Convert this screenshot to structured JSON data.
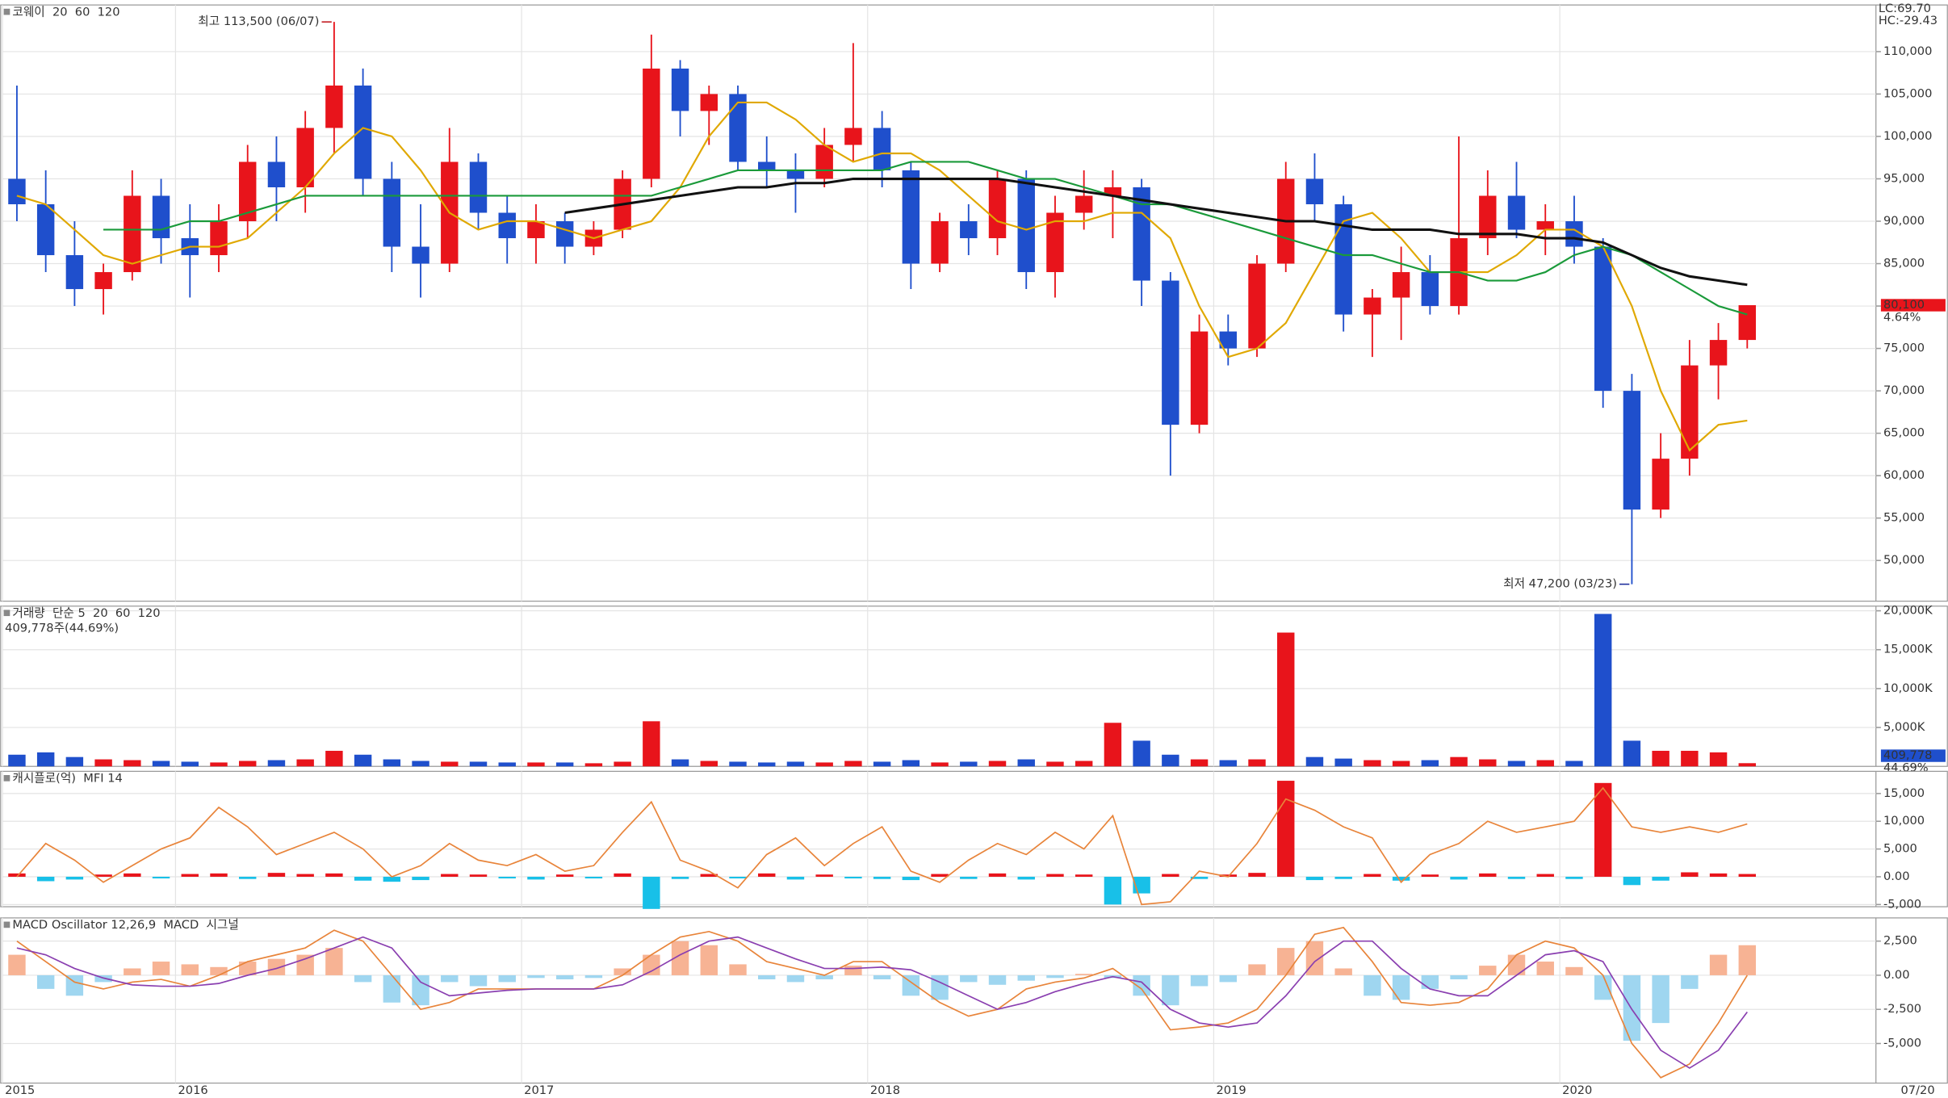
{
  "chart_data": [
    {
      "type": "candlestick",
      "title": "코웨이",
      "categories": [
        "2015",
        null,
        null,
        null,
        null,
        null,
        "2016",
        null,
        null,
        null,
        null,
        null,
        null,
        null,
        null,
        null,
        null,
        null,
        "2017",
        null,
        null,
        null,
        null,
        null,
        null,
        null,
        null,
        null,
        null,
        null,
        "2018",
        null,
        null,
        null,
        null,
        null,
        null,
        null,
        null,
        null,
        null,
        null,
        "2019",
        null,
        null,
        null,
        null,
        null,
        null,
        null,
        null,
        null,
        null,
        null,
        "2020",
        null,
        null,
        null,
        null,
        null,
        null
      ],
      "x_end_label": "07/20",
      "open": [
        95000,
        92000,
        86000,
        82000,
        84000,
        93000,
        88000,
        86000,
        90000,
        97000,
        94000,
        101000,
        106000,
        95000,
        87000,
        85000,
        97000,
        91000,
        88000,
        90000,
        87000,
        89000,
        95000,
        108000,
        103000,
        105000,
        97000,
        96000,
        95000,
        99000,
        101000,
        96000,
        85000,
        90000,
        88000,
        95000,
        84000,
        91000,
        93000,
        94000,
        83000,
        66000,
        77000,
        75000,
        85000,
        95000,
        92000,
        79000,
        81000,
        84000,
        80000,
        88000,
        93000,
        89000,
        90000,
        87000,
        70000,
        56000,
        62000,
        73000,
        76000
      ],
      "high": [
        106000,
        96000,
        90000,
        85000,
        96000,
        95000,
        92000,
        92000,
        99000,
        100000,
        103000,
        113500,
        108000,
        97000,
        92000,
        101000,
        98000,
        93000,
        92000,
        91000,
        90000,
        96000,
        112000,
        109000,
        106000,
        106000,
        100000,
        98000,
        101000,
        111000,
        103000,
        97000,
        91000,
        92000,
        96000,
        96000,
        93000,
        96000,
        96000,
        95000,
        84000,
        79000,
        79000,
        86000,
        97000,
        98000,
        93000,
        82000,
        87000,
        86000,
        100000,
        96000,
        97000,
        92000,
        93000,
        88000,
        72000,
        65000,
        76000,
        78000,
        80100
      ],
      "low": [
        90000,
        84000,
        80000,
        79000,
        83000,
        85000,
        81000,
        84000,
        88000,
        90000,
        91000,
        98000,
        93000,
        84000,
        81000,
        84000,
        89000,
        85000,
        85000,
        85000,
        86000,
        88000,
        94000,
        100000,
        99000,
        96000,
        94000,
        91000,
        94000,
        97000,
        94000,
        82000,
        84000,
        86000,
        86000,
        82000,
        81000,
        89000,
        88000,
        80000,
        60000,
        65000,
        73000,
        74000,
        84000,
        90000,
        77000,
        74000,
        76000,
        79000,
        79000,
        86000,
        88000,
        86000,
        85000,
        68000,
        47200,
        55000,
        60000,
        69000,
        75000
      ],
      "close": [
        92000,
        86000,
        82000,
        84000,
        93000,
        88000,
        86000,
        90000,
        97000,
        94000,
        101000,
        106000,
        95000,
        87000,
        85000,
        97000,
        91000,
        88000,
        90000,
        87000,
        89000,
        95000,
        108000,
        103000,
        105000,
        97000,
        96000,
        95000,
        99000,
        101000,
        96000,
        85000,
        90000,
        88000,
        95000,
        84000,
        91000,
        93000,
        94000,
        83000,
        66000,
        77000,
        75000,
        85000,
        95000,
        92000,
        79000,
        81000,
        84000,
        80000,
        88000,
        93000,
        89000,
        90000,
        87000,
        70000,
        56000,
        62000,
        73000,
        76000,
        80100
      ],
      "up_color": "#e8141b",
      "down_color": "#1f4fcc",
      "series": [
        {
          "name": "20",
          "color": "#e0a800",
          "values": [
            93000,
            92000,
            89000,
            86000,
            85000,
            86000,
            87000,
            87000,
            88000,
            91000,
            94000,
            98000,
            101000,
            100000,
            96000,
            91000,
            89000,
            90000,
            90000,
            89000,
            88000,
            89000,
            90000,
            94000,
            100000,
            104000,
            104000,
            102000,
            99000,
            97000,
            98000,
            98000,
            96000,
            93000,
            90000,
            89000,
            90000,
            90000,
            91000,
            91000,
            88000,
            80000,
            74000,
            75000,
            78000,
            84000,
            90000,
            91000,
            88000,
            84000,
            84000,
            84000,
            86000,
            89000,
            89000,
            87000,
            80000,
            70000,
            63000,
            66000,
            66500
          ]
        },
        {
          "name": "60",
          "color": "#1a9a3a",
          "values": [
            null,
            null,
            null,
            89000,
            89000,
            89000,
            90000,
            90000,
            91000,
            92000,
            93000,
            93000,
            93000,
            93000,
            93000,
            93000,
            93000,
            93000,
            93000,
            93000,
            93000,
            93000,
            93000,
            94000,
            95000,
            96000,
            96000,
            96000,
            96000,
            96000,
            96000,
            97000,
            97000,
            97000,
            96000,
            95000,
            95000,
            94000,
            93000,
            92000,
            92000,
            91000,
            90000,
            89000,
            88000,
            87000,
            86000,
            86000,
            85000,
            84000,
            84000,
            83000,
            83000,
            84000,
            86000,
            87000,
            86000,
            84000,
            82000,
            80000,
            79000
          ]
        },
        {
          "name": "120",
          "color": "#111111",
          "values": [
            null,
            null,
            null,
            null,
            null,
            null,
            null,
            null,
            null,
            null,
            null,
            null,
            null,
            null,
            null,
            null,
            null,
            null,
            null,
            91000,
            91500,
            92000,
            92500,
            93000,
            93500,
            94000,
            94000,
            94500,
            94500,
            95000,
            95000,
            95000,
            95000,
            95000,
            95000,
            94500,
            94000,
            93500,
            93000,
            92500,
            92000,
            91500,
            91000,
            90500,
            90000,
            90000,
            89500,
            89000,
            89000,
            89000,
            88500,
            88500,
            88500,
            88000,
            88000,
            87500,
            86000,
            84500,
            83500,
            83000,
            82500
          ]
        }
      ],
      "high_label": "최고 113,500 (06/07)",
      "low_label": "최저 47,200 (03/23)",
      "last_label": "80,100",
      "change_label": "4.64%",
      "lc_label": "LC:69.70",
      "hc_label": "HC:-29.43",
      "ylim": [
        45200,
        115500
      ],
      "yticks": [
        {
          "value": 50000,
          "label": "50,000"
        },
        {
          "value": 55000,
          "label": "55,000"
        },
        {
          "value": 60000,
          "label": "60,000"
        },
        {
          "value": 65000,
          "label": "65,000"
        },
        {
          "value": 70000,
          "label": "70,000"
        },
        {
          "value": 75000,
          "label": "75,000"
        },
        {
          "value": 80000,
          "label": "80,000"
        },
        {
          "value": 85000,
          "label": "85,000"
        },
        {
          "value": 90000,
          "label": "90,000"
        },
        {
          "value": 95000,
          "label": "95,000"
        },
        {
          "value": 100000,
          "label": "100,000"
        },
        {
          "value": 105000,
          "label": "105,000"
        },
        {
          "value": 110000,
          "label": "110,000"
        }
      ],
      "grid": true
    },
    {
      "type": "volume",
      "title": "거래량",
      "legend": [
        {
          "name": "단순 5",
          "color": "#b03bc8"
        },
        {
          "name": "20",
          "color": "#e0a800"
        },
        {
          "name": "60",
          "color": "#1a9a3a"
        },
        {
          "name": "120",
          "color": "#777777"
        }
      ],
      "subtitle": "409,778주(44.69%)",
      "values": [
        1500,
        1800,
        1200,
        900,
        800,
        700,
        600,
        500,
        700,
        800,
        900,
        2000,
        1500,
        900,
        700,
        600,
        600,
        500,
        500,
        500,
        400,
        600,
        5800,
        900,
        700,
        600,
        500,
        600,
        500,
        700,
        600,
        800,
        500,
        600,
        700,
        900,
        600,
        700,
        5600,
        3300,
        1500,
        900,
        800,
        900,
        17200,
        1200,
        1000,
        800,
        700,
        800,
        1200,
        900,
        700,
        800,
        700,
        19600,
        3300,
        2000,
        2000,
        1800,
        409.778
      ],
      "last_label": "409,778",
      "ratio_label": "44.69%",
      "ylim": [
        0,
        20600
      ],
      "yticks": [
        {
          "value": 5000,
          "label": "5,000K"
        },
        {
          "value": 10000,
          "label": "10,000K"
        },
        {
          "value": 15000,
          "label": "15,000K"
        },
        {
          "value": 20000,
          "label": "20,000K"
        }
      ],
      "grid": true
    },
    {
      "type": "bar",
      "title": "캐시플로(억)",
      "up_color": "#e8141b",
      "down_color": "#18c0e8",
      "values": [
        600,
        -800,
        -500,
        400,
        600,
        -300,
        500,
        600,
        -400,
        700,
        500,
        600,
        -700,
        -900,
        -600,
        500,
        400,
        -300,
        -500,
        400,
        -300,
        600,
        -5800,
        -400,
        500,
        -300,
        600,
        -500,
        400,
        -300,
        -400,
        -600,
        500,
        -400,
        600,
        -500,
        500,
        400,
        -5000,
        -3000,
        500,
        -400,
        400,
        700,
        17300,
        -600,
        -400,
        500,
        -700,
        400,
        -500,
        600,
        -400,
        500,
        -400,
        16900,
        -1500,
        -700,
        800,
        600,
        500
      ],
      "series": [
        {
          "name": "MFI 14",
          "color": "#e8843a",
          "values": [
            0,
            6000,
            3000,
            -1000,
            2000,
            5000,
            7000,
            12500,
            9000,
            4000,
            6000,
            8000,
            5000,
            0,
            2000,
            6000,
            3000,
            2000,
            4000,
            1000,
            2000,
            8000,
            13500,
            3000,
            1000,
            -2000,
            4000,
            7000,
            2000,
            6000,
            9000,
            1000,
            -1000,
            3000,
            6000,
            4000,
            8000,
            5000,
            11000,
            -5000,
            -4500,
            1000,
            0,
            6000,
            14000,
            12000,
            9000,
            7000,
            -1000,
            4000,
            6000,
            10000,
            8000,
            9000,
            10000,
            16000,
            9000,
            8000,
            9000,
            8000,
            9500
          ]
        }
      ],
      "ylim": [
        -5400,
        19000
      ],
      "yticks": [
        {
          "value": -5000,
          "label": "-5,000"
        },
        {
          "value": 0,
          "label": "0.00"
        },
        {
          "value": 5000,
          "label": "5,000"
        },
        {
          "value": 10000,
          "label": "10,000"
        },
        {
          "value": 15000,
          "label": "15,000"
        }
      ],
      "grid": true
    },
    {
      "type": "bar",
      "title": "MACD Oscillator 12,26,9",
      "up_color": "#f7b394",
      "down_color": "#9fd6f0",
      "values": [
        1500,
        -1000,
        -1500,
        -500,
        500,
        1000,
        800,
        600,
        1000,
        1200,
        1500,
        2000,
        -500,
        -2000,
        -2200,
        -500,
        -800,
        -500,
        -200,
        -300,
        -200,
        500,
        1500,
        2500,
        2200,
        800,
        -300,
        -500,
        -300,
        700,
        -300,
        -1500,
        -1800,
        -500,
        -700,
        -400,
        -200,
        100,
        -200,
        -1500,
        -2200,
        -800,
        -500,
        800,
        2000,
        2500,
        500,
        -1500,
        -1800,
        -1000,
        -300,
        700,
        1500,
        1000,
        600,
        -1800,
        -4800,
        -3500,
        -1000,
        1500,
        2200
      ],
      "series": [
        {
          "name": "MACD",
          "color": "#e8843a",
          "values": [
            2500,
            1000,
            -500,
            -1000,
            -500,
            -300,
            -800,
            0,
            1000,
            1500,
            2000,
            3300,
            2500,
            0,
            -2500,
            -2000,
            -1000,
            -1000,
            -1000,
            -1000,
            -1000,
            0,
            1500,
            2800,
            3200,
            2500,
            1000,
            500,
            0,
            1000,
            1000,
            -500,
            -2000,
            -3000,
            -2500,
            -1000,
            -500,
            -200,
            500,
            -1000,
            -4000,
            -3800,
            -3500,
            -2500,
            0,
            3000,
            3500,
            1000,
            -2000,
            -2200,
            -2000,
            -1000,
            1500,
            2500,
            2000,
            0,
            -5000,
            -7500,
            -6500,
            -3500,
            0
          ]
        },
        {
          "name": "시그널",
          "color": "#8a3fb0",
          "values": [
            2000,
            1500,
            500,
            -200,
            -700,
            -800,
            -800,
            -600,
            0,
            500,
            1200,
            2000,
            2800,
            2000,
            -500,
            -1500,
            -1300,
            -1100,
            -1000,
            -1000,
            -1000,
            -700,
            300,
            1500,
            2500,
            2800,
            2000,
            1200,
            500,
            500,
            600,
            400,
            -500,
            -1500,
            -2500,
            -2000,
            -1200,
            -600,
            -100,
            -500,
            -2500,
            -3500,
            -3800,
            -3500,
            -1500,
            1000,
            2500,
            2500,
            500,
            -1000,
            -1500,
            -1500,
            0,
            1500,
            1800,
            1000,
            -2500,
            -5500,
            -6800,
            -5500,
            -2700
          ]
        }
      ],
      "ylim": [
        -7900,
        4200
      ],
      "yticks": [
        {
          "value": -5000,
          "label": "-5,000"
        },
        {
          "value": -2500,
          "label": "-2,500"
        },
        {
          "value": 0,
          "label": "0.00"
        },
        {
          "value": 2500,
          "label": "2,500"
        }
      ],
      "grid": true
    }
  ]
}
